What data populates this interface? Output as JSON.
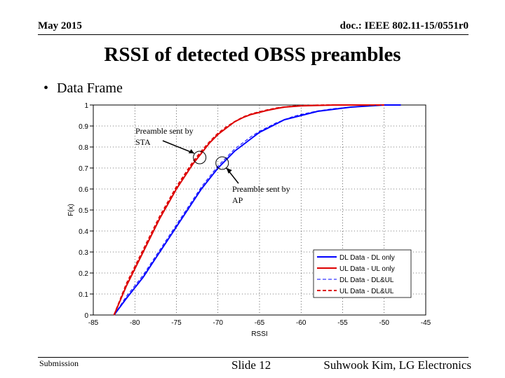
{
  "header": {
    "date": "May 2015",
    "doc_id": "doc.: IEEE 802.11-15/0551r0"
  },
  "slide": {
    "title": "RSSI of detected OBSS preambles",
    "bullet": "Data Frame"
  },
  "footer": {
    "submission": "Submission",
    "slide_number": "Slide 12",
    "author": "Suhwook Kim, LG Electronics"
  },
  "chart_data": {
    "type": "line",
    "xlabel": "RSSI",
    "ylabel": "F(x)",
    "xlim": [
      -85,
      -45
    ],
    "ylim": [
      0,
      1
    ],
    "xticks": [
      -85,
      -80,
      -75,
      -70,
      -65,
      -60,
      -55,
      -50,
      -45
    ],
    "yticks": [
      0,
      0.1,
      0.2,
      0.3,
      0.4,
      0.5,
      0.6,
      0.7,
      0.8,
      0.9,
      1
    ],
    "grid": true,
    "legend_position": "bottom-right",
    "series": [
      {
        "name": "DL Data - DL only",
        "color": "#0000ff",
        "style": "solid",
        "x": [
          -82.5,
          -81,
          -80,
          -79,
          -78,
          -77,
          -76,
          -75,
          -74,
          -73,
          -72,
          -71,
          -70,
          -69,
          -68,
          -67,
          -66,
          -65,
          -64,
          -63,
          -62,
          -61,
          -60,
          -58,
          -56,
          -54,
          -52,
          -50,
          -48
        ],
        "y": [
          0,
          0.08,
          0.13,
          0.18,
          0.24,
          0.3,
          0.36,
          0.42,
          0.48,
          0.54,
          0.6,
          0.65,
          0.7,
          0.74,
          0.78,
          0.81,
          0.84,
          0.87,
          0.89,
          0.91,
          0.93,
          0.94,
          0.95,
          0.97,
          0.98,
          0.99,
          0.995,
          1.0,
          1.0
        ]
      },
      {
        "name": "UL Data - UL only",
        "color": "#dd0000",
        "style": "solid",
        "x": [
          -82.5,
          -81,
          -80,
          -79,
          -78,
          -77,
          -76,
          -75,
          -74,
          -73,
          -72,
          -71,
          -70,
          -69,
          -68,
          -67,
          -66,
          -65,
          -64,
          -63,
          -62,
          -61,
          -60,
          -58,
          -56,
          -54,
          -52,
          -50
        ],
        "y": [
          0,
          0.14,
          0.22,
          0.3,
          0.38,
          0.46,
          0.53,
          0.6,
          0.66,
          0.72,
          0.77,
          0.82,
          0.86,
          0.89,
          0.92,
          0.94,
          0.955,
          0.965,
          0.975,
          0.983,
          0.99,
          0.993,
          0.996,
          0.998,
          1.0,
          1.0,
          1.0,
          1.0
        ]
      },
      {
        "name": "DL Data - DL&UL",
        "color": "#0000ff",
        "style": "dashed-thin",
        "x": [
          -82.5,
          -81,
          -80,
          -79,
          -78,
          -77,
          -76,
          -75,
          -74,
          -73,
          -72,
          -71,
          -70,
          -69,
          -68,
          -67,
          -66,
          -65,
          -64,
          -63,
          -62,
          -61,
          -60,
          -58,
          -56,
          -54,
          -52,
          -50,
          -48
        ],
        "y": [
          0,
          0.09,
          0.14,
          0.19,
          0.25,
          0.31,
          0.37,
          0.43,
          0.49,
          0.55,
          0.61,
          0.66,
          0.71,
          0.75,
          0.79,
          0.82,
          0.85,
          0.875,
          0.895,
          0.915,
          0.93,
          0.945,
          0.955,
          0.972,
          0.983,
          0.99,
          0.996,
          1.0,
          1.0
        ]
      },
      {
        "name": "UL Data - DL&UL",
        "color": "#dd0000",
        "style": "dashed-thick",
        "x": [
          -82.5,
          -81,
          -80,
          -79,
          -78,
          -77,
          -76,
          -75,
          -74,
          -73,
          -72,
          -71,
          -70,
          -69,
          -68,
          -67,
          -66,
          -65,
          -64,
          -63,
          -62,
          -61,
          -60,
          -58,
          -56,
          -54,
          -52,
          -50
        ],
        "y": [
          0,
          0.15,
          0.23,
          0.31,
          0.39,
          0.47,
          0.54,
          0.61,
          0.67,
          0.73,
          0.78,
          0.825,
          0.865,
          0.895,
          0.92,
          0.942,
          0.957,
          0.967,
          0.977,
          0.985,
          0.99,
          0.994,
          0.997,
          0.999,
          1.0,
          1.0,
          1.0,
          1.0
        ]
      }
    ],
    "annotations": [
      {
        "text": [
          "Preamble sent by",
          "STA"
        ],
        "target": {
          "x": -72.2,
          "y": 0.75
        }
      },
      {
        "text": [
          "Preamble sent by",
          "AP"
        ],
        "target": {
          "x": -70,
          "y": 0.72
        }
      }
    ]
  }
}
